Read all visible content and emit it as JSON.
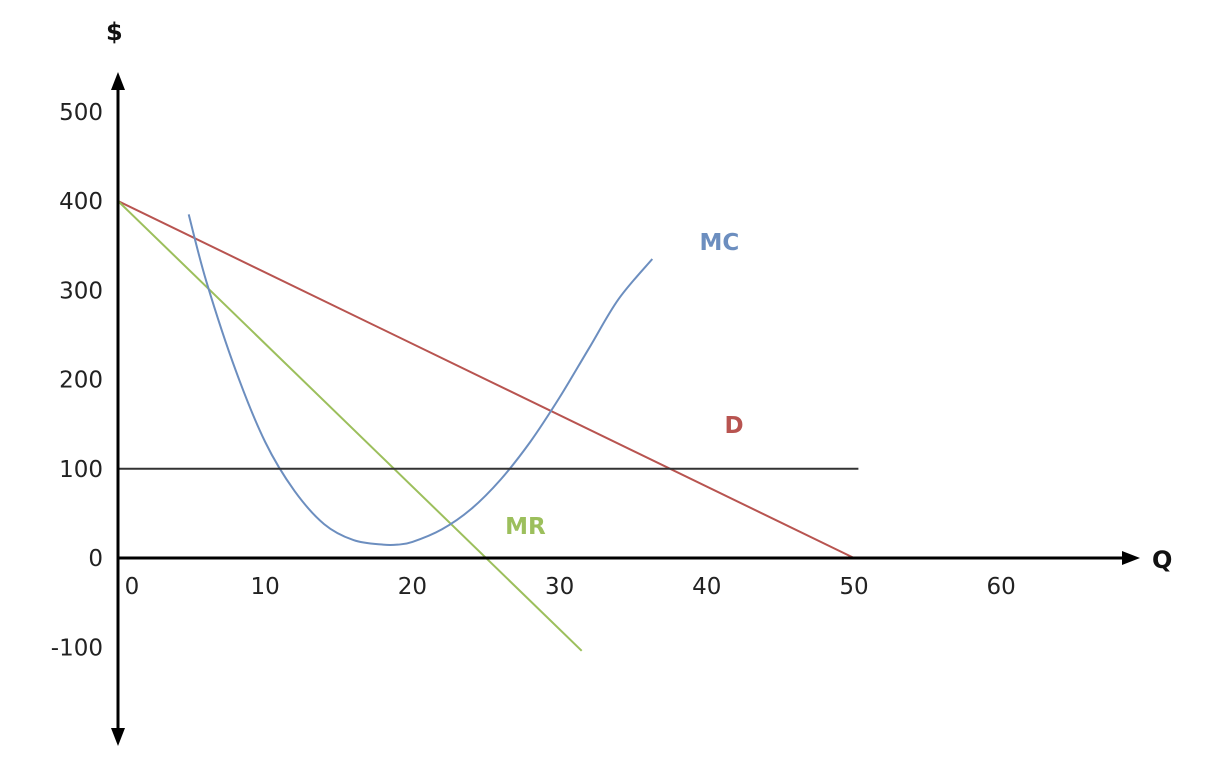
{
  "chart_data": {
    "type": "line",
    "title": "",
    "xlabel": "Q",
    "ylabel": "$",
    "xlim": [
      -1,
      70
    ],
    "ylim": [
      -195,
      540
    ],
    "x_ticks": [
      0,
      10,
      20,
      30,
      40,
      50,
      60
    ],
    "x_tick_labels": [
      "0",
      "10",
      "20",
      "30",
      "40",
      "50",
      "60"
    ],
    "y_ticks": [
      -100,
      0,
      100,
      200,
      300,
      400,
      500
    ],
    "y_tick_labels": [
      "-100",
      "0",
      "100",
      "200",
      "300",
      "400",
      "500"
    ],
    "grid": false,
    "legend": "none",
    "series": [
      {
        "name": "D",
        "color": "#b85450",
        "x": [
          0,
          50
        ],
        "y": [
          400,
          0
        ]
      },
      {
        "name": "MR",
        "color": "#9cbf5c",
        "x": [
          0,
          31.5
        ],
        "y": [
          400,
          -104
        ]
      },
      {
        "name": "MC",
        "color": "#6c8ebf",
        "x": [
          4.8,
          6,
          8,
          10,
          12,
          14,
          16,
          18,
          19,
          20,
          22,
          24,
          26,
          28,
          30,
          32,
          34,
          36.3
        ],
        "y": [
          385,
          310,
          210,
          130,
          75,
          38,
          20,
          15,
          15,
          18,
          32,
          55,
          88,
          130,
          180,
          235,
          290,
          335
        ]
      },
      {
        "name": "",
        "color": "#333333",
        "x": [
          0,
          50.3
        ],
        "y": [
          100,
          100
        ]
      }
    ],
    "annotations": [
      {
        "text": "MC",
        "x": 39.5,
        "y": 345,
        "color": "#6c8ebf"
      },
      {
        "text": "D",
        "x": 41.2,
        "y": 140,
        "color": "#b85450"
      },
      {
        "text": "MR",
        "x": 26.3,
        "y": 27,
        "color": "#9cbf5c"
      }
    ]
  }
}
